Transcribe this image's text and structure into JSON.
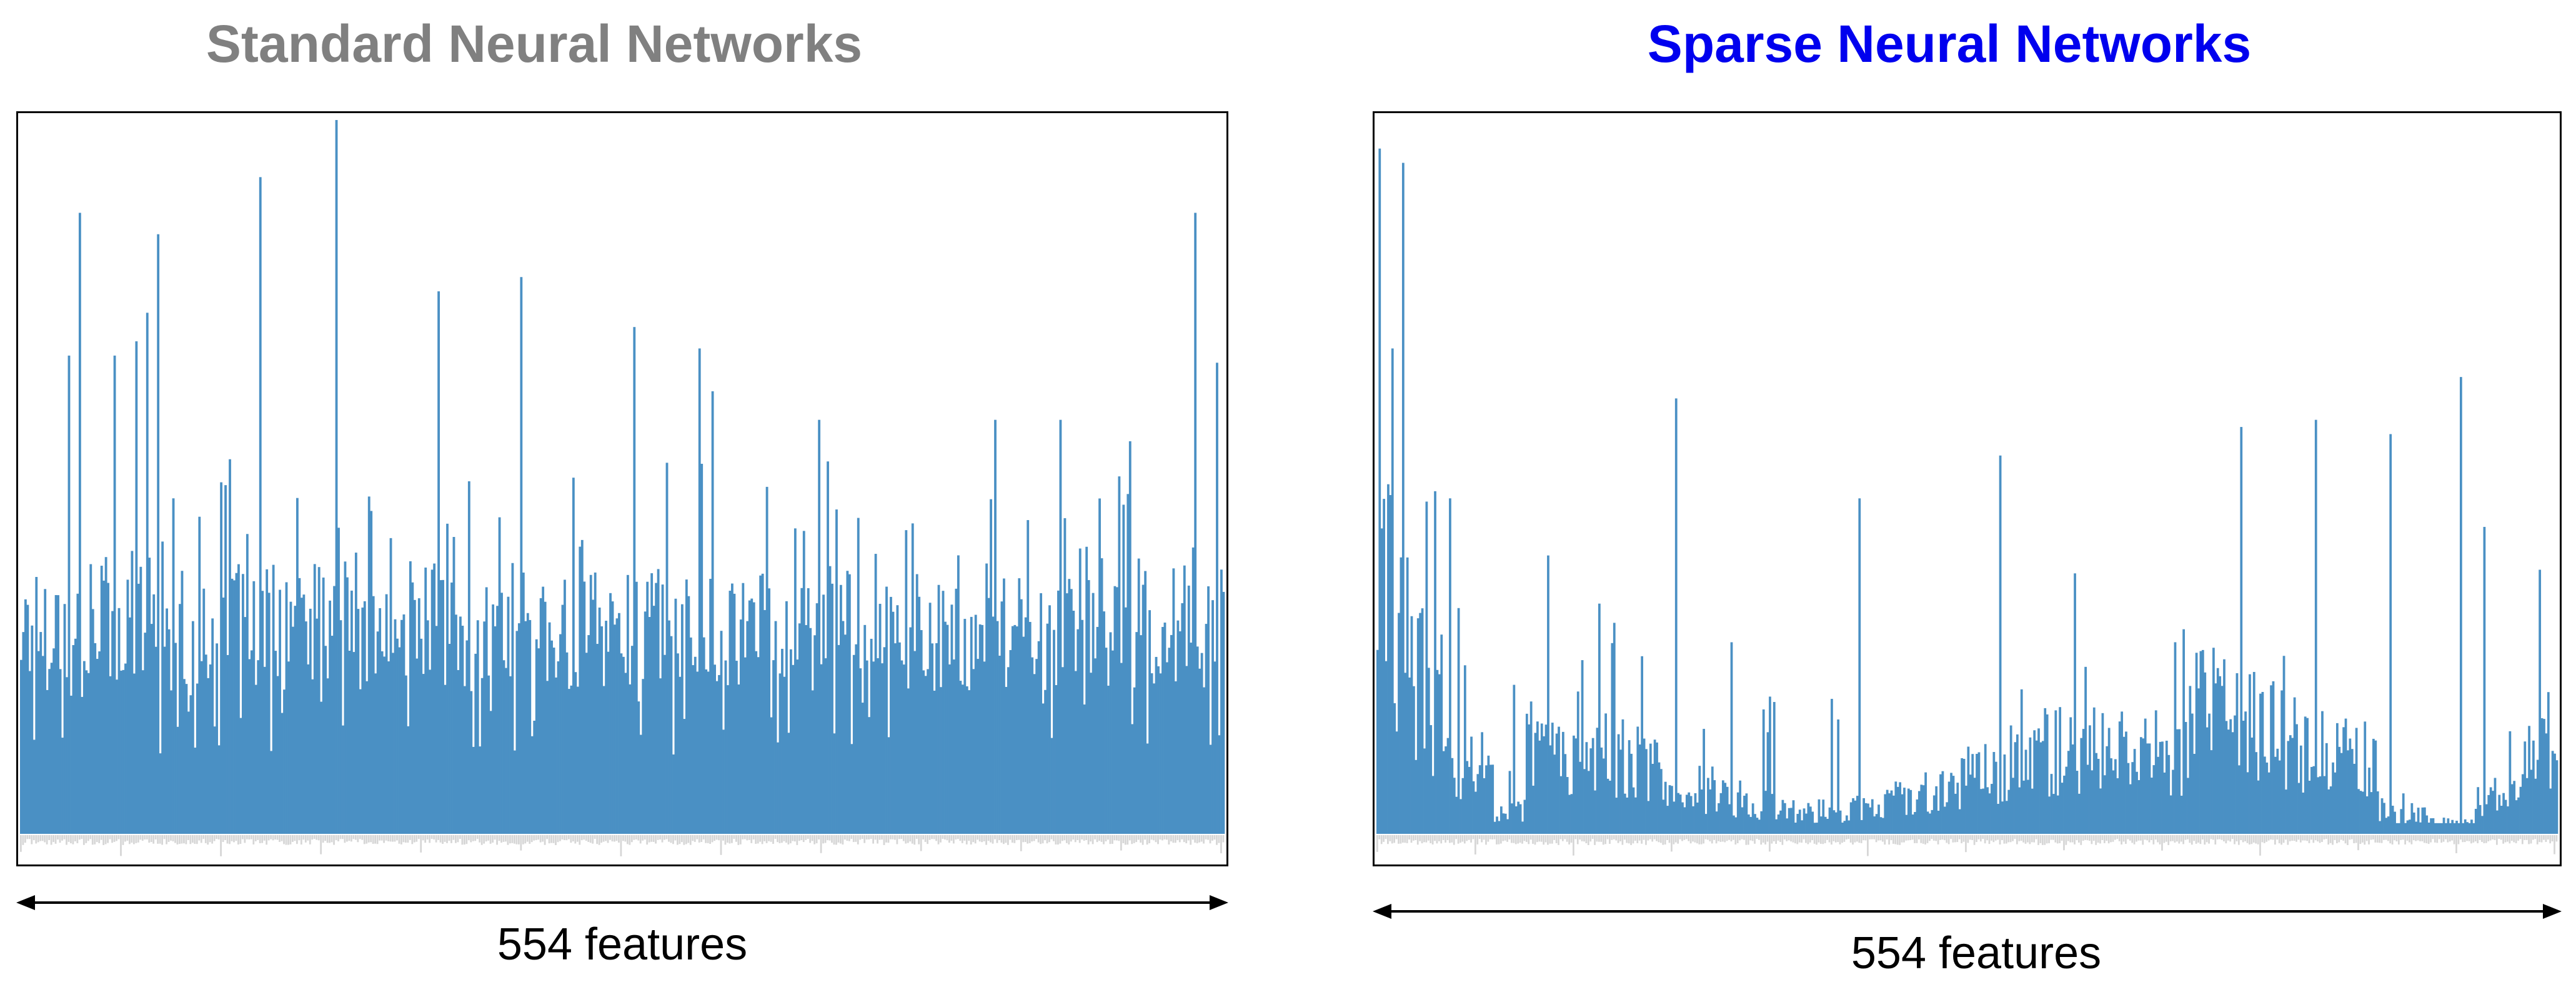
{
  "colors": {
    "bar": "#4a90c4",
    "baseline": "#d6d6d6",
    "frame": "#000000",
    "left_title": "#808080",
    "right_title": "#0000ee"
  },
  "chart_data": [
    {
      "type": "bar",
      "title": "Standard Neural Networks",
      "xlabel": "554 features",
      "ylabel": "",
      "n_features": 554,
      "ylim": [
        0,
        1.0
      ],
      "grid": false,
      "legend": "none",
      "seed": 17,
      "peaks": [
        {
          "feature": 145,
          "value": 1.0
        },
        {
          "feature": 110,
          "value": 0.92
        },
        {
          "feature": 27,
          "value": 0.87
        },
        {
          "feature": 540,
          "value": 0.87
        },
        {
          "feature": 63,
          "value": 0.84
        },
        {
          "feature": 230,
          "value": 0.78
        },
        {
          "feature": 192,
          "value": 0.76
        },
        {
          "feature": 282,
          "value": 0.71
        },
        {
          "feature": 58,
          "value": 0.73
        },
        {
          "feature": 312,
          "value": 0.68
        },
        {
          "feature": 550,
          "value": 0.66
        },
        {
          "feature": 22,
          "value": 0.67
        },
        {
          "feature": 53,
          "value": 0.69
        },
        {
          "feature": 43,
          "value": 0.67
        },
        {
          "feature": 318,
          "value": 0.62
        },
        {
          "feature": 478,
          "value": 0.58
        },
        {
          "feature": 367,
          "value": 0.58
        },
        {
          "feature": 448,
          "value": 0.58
        },
        {
          "feature": 510,
          "value": 0.55
        }
      ]
    },
    {
      "type": "bar",
      "title": "Sparse Neural Networks",
      "xlabel": "554 features",
      "ylabel": "",
      "n_features": 554,
      "ylim": [
        0,
        1.0
      ],
      "grid": false,
      "legend": "none",
      "seed": 29,
      "peaks": [
        {
          "feature": 1,
          "value": 0.96
        },
        {
          "feature": 12,
          "value": 0.94
        },
        {
          "feature": 7,
          "value": 0.68
        },
        {
          "feature": 140,
          "value": 0.61
        },
        {
          "feature": 508,
          "value": 0.64
        },
        {
          "feature": 292,
          "value": 0.53
        },
        {
          "feature": 440,
          "value": 0.58
        },
        {
          "feature": 405,
          "value": 0.57
        },
        {
          "feature": 475,
          "value": 0.56
        },
        {
          "feature": 27,
          "value": 0.48
        },
        {
          "feature": 34,
          "value": 0.47
        },
        {
          "feature": 80,
          "value": 0.39
        },
        {
          "feature": 226,
          "value": 0.47
        },
        {
          "feature": 545,
          "value": 0.37
        },
        {
          "feature": 519,
          "value": 0.43
        }
      ]
    }
  ]
}
